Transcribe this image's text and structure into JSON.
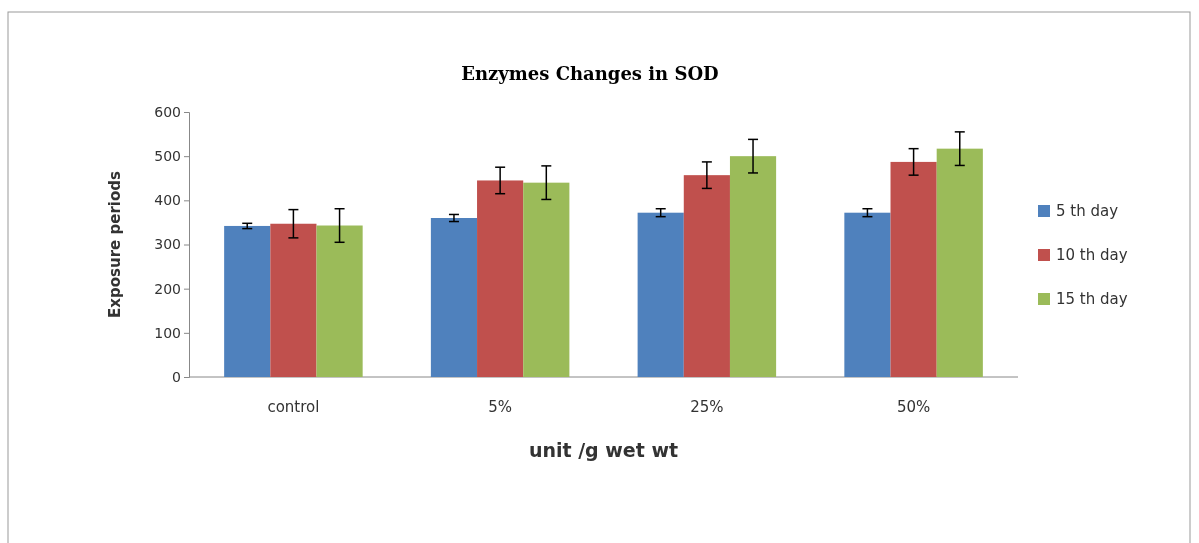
{
  "chart_data": {
    "type": "bar",
    "title": "Enzymes Changes in  SOD",
    "xlabel": "unit /g wet wt",
    "ylabel": "Exposure periods",
    "categories": [
      "control",
      "5%",
      "25%",
      "50%"
    ],
    "series": [
      {
        "name": "5 th day",
        "color": "#4f81bd",
        "values": [
          342,
          360,
          372,
          372
        ],
        "errors": [
          6,
          8,
          9,
          9
        ]
      },
      {
        "name": "10 th day",
        "color": "#c0504d",
        "values": [
          347,
          445,
          457,
          487
        ],
        "errors": [
          32,
          30,
          30,
          30
        ]
      },
      {
        "name": "15 th day",
        "color": "#9bbb59",
        "values": [
          343,
          440,
          500,
          517
        ],
        "errors": [
          38,
          38,
          38,
          38
        ]
      }
    ],
    "ylim": [
      0,
      600
    ],
    "yticks": [
      0,
      100,
      200,
      300,
      400,
      500,
      600
    ],
    "grid": false,
    "legend": "right"
  }
}
